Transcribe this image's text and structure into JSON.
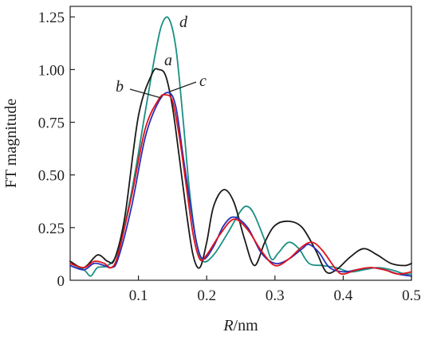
{
  "chart_data": {
    "type": "line",
    "xlabel_var": "R",
    "xlabel_unit": "/nm",
    "ylabel": "FT magnitude",
    "xlim": [
      0,
      0.5
    ],
    "ylim": [
      0,
      1.3
    ],
    "x_ticks": [
      0.1,
      0.2,
      0.3,
      0.4,
      0.5
    ],
    "y_ticks": [
      0,
      0.25,
      0.5,
      0.75,
      1.0,
      1.25
    ],
    "x_tick_labels": [
      "0.1",
      "0.2",
      "0.3",
      "0.4",
      "0.5"
    ],
    "y_tick_labels": [
      "0",
      "0.25",
      "0.50",
      "0.75",
      "1.00",
      "1.25"
    ],
    "grid": false,
    "series": [
      {
        "name": "a",
        "color": "#1a1a1a",
        "x": [
          0.0,
          0.02,
          0.04,
          0.055,
          0.065,
          0.08,
          0.1,
          0.12,
          0.13,
          0.14,
          0.15,
          0.16,
          0.17,
          0.18,
          0.19,
          0.2,
          0.21,
          0.225,
          0.24,
          0.255,
          0.27,
          0.285,
          0.3,
          0.32,
          0.34,
          0.36,
          0.375,
          0.39,
          0.41,
          0.43,
          0.45,
          0.47,
          0.49,
          0.5
        ],
        "y": [
          0.09,
          0.06,
          0.12,
          0.09,
          0.1,
          0.3,
          0.78,
          0.98,
          1.0,
          0.97,
          0.82,
          0.58,
          0.33,
          0.12,
          0.06,
          0.18,
          0.35,
          0.43,
          0.37,
          0.2,
          0.07,
          0.18,
          0.26,
          0.28,
          0.25,
          0.14,
          0.04,
          0.05,
          0.11,
          0.15,
          0.12,
          0.08,
          0.07,
          0.08
        ]
      },
      {
        "name": "b",
        "color": "#e0121b",
        "x": [
          0.0,
          0.02,
          0.035,
          0.05,
          0.06,
          0.07,
          0.09,
          0.11,
          0.13,
          0.14,
          0.15,
          0.16,
          0.17,
          0.18,
          0.19,
          0.2,
          0.22,
          0.24,
          0.26,
          0.28,
          0.3,
          0.32,
          0.34,
          0.355,
          0.37,
          0.39,
          0.4,
          0.42,
          0.44,
          0.46,
          0.48,
          0.5
        ],
        "y": [
          0.08,
          0.06,
          0.09,
          0.08,
          0.06,
          0.12,
          0.4,
          0.72,
          0.86,
          0.88,
          0.85,
          0.68,
          0.45,
          0.22,
          0.1,
          0.12,
          0.22,
          0.29,
          0.24,
          0.14,
          0.07,
          0.1,
          0.16,
          0.18,
          0.14,
          0.05,
          0.03,
          0.05,
          0.06,
          0.05,
          0.03,
          0.04
        ]
      },
      {
        "name": "c",
        "color": "#2a2fb5",
        "x": [
          0.0,
          0.02,
          0.035,
          0.05,
          0.06,
          0.07,
          0.09,
          0.11,
          0.13,
          0.145,
          0.155,
          0.165,
          0.175,
          0.185,
          0.195,
          0.21,
          0.225,
          0.24,
          0.26,
          0.28,
          0.3,
          0.32,
          0.34,
          0.35,
          0.365,
          0.38,
          0.4,
          0.42,
          0.44,
          0.46,
          0.48,
          0.5
        ],
        "y": [
          0.07,
          0.05,
          0.08,
          0.07,
          0.06,
          0.1,
          0.35,
          0.68,
          0.85,
          0.89,
          0.82,
          0.6,
          0.38,
          0.18,
          0.1,
          0.16,
          0.26,
          0.3,
          0.25,
          0.13,
          0.08,
          0.1,
          0.15,
          0.17,
          0.13,
          0.06,
          0.04,
          0.05,
          0.06,
          0.05,
          0.03,
          0.02
        ]
      },
      {
        "name": "d",
        "color": "#1a8f82",
        "x": [
          0.0,
          0.02,
          0.03,
          0.04,
          0.055,
          0.07,
          0.09,
          0.11,
          0.125,
          0.135,
          0.145,
          0.155,
          0.165,
          0.175,
          0.185,
          0.195,
          0.21,
          0.23,
          0.25,
          0.26,
          0.27,
          0.285,
          0.295,
          0.305,
          0.32,
          0.335,
          0.35,
          0.37,
          0.39,
          0.41,
          0.43,
          0.45,
          0.47,
          0.49,
          0.5
        ],
        "y": [
          0.08,
          0.05,
          0.02,
          0.06,
          0.07,
          0.14,
          0.42,
          0.8,
          1.08,
          1.22,
          1.24,
          1.1,
          0.78,
          0.42,
          0.18,
          0.09,
          0.12,
          0.22,
          0.33,
          0.35,
          0.31,
          0.19,
          0.1,
          0.13,
          0.18,
          0.15,
          0.08,
          0.07,
          0.06,
          0.04,
          0.05,
          0.06,
          0.05,
          0.03,
          0.03
        ]
      }
    ],
    "curve_labels": [
      {
        "series": "a",
        "text": "a"
      },
      {
        "series": "b",
        "text": "b"
      },
      {
        "series": "c",
        "text": "c"
      },
      {
        "series": "d",
        "text": "d"
      }
    ]
  }
}
